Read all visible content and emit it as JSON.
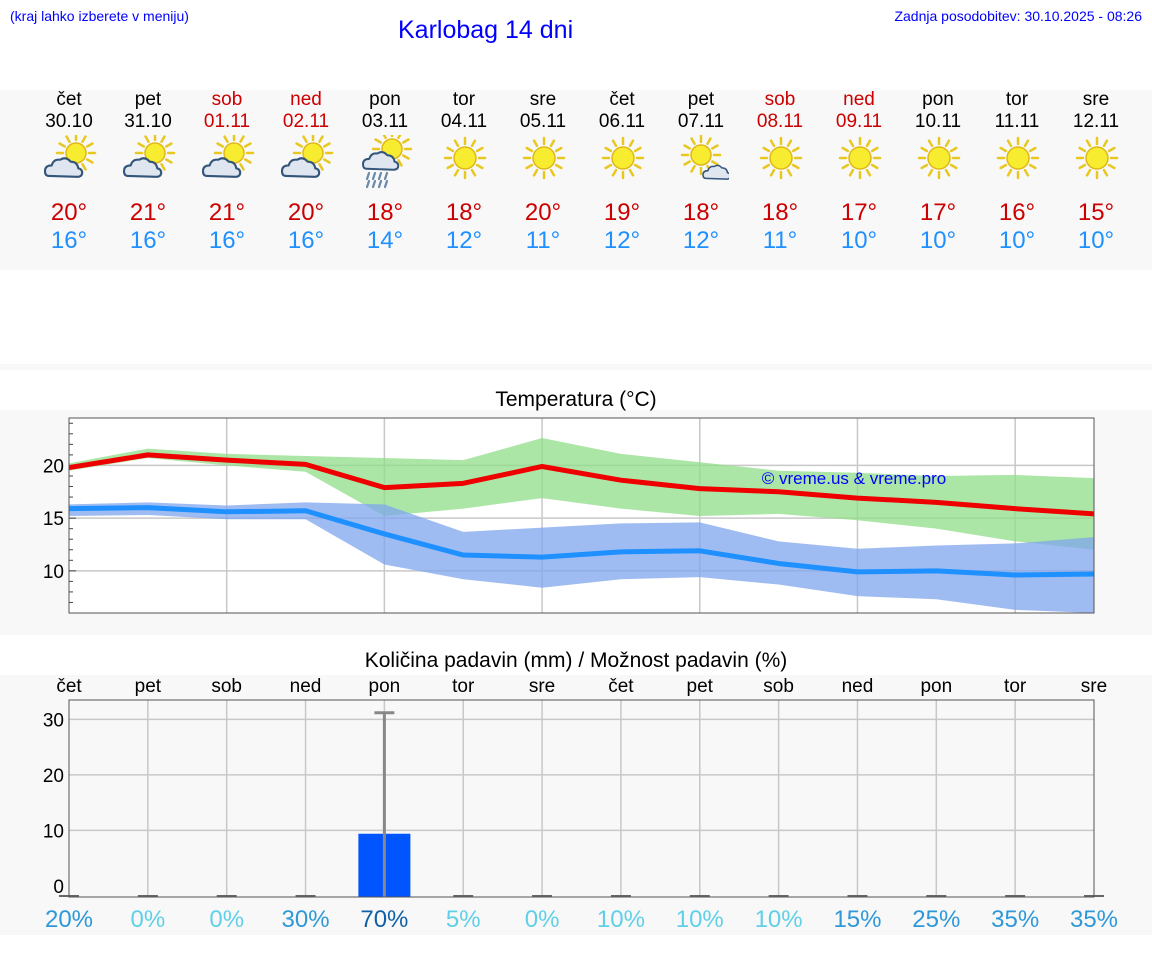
{
  "header": {
    "location_hint": "(kraj lahko izberete v meniju)",
    "title": "Karlobag 14 dni",
    "updated": "Zadnja posodobitev: 30.10.2025 - 08:26"
  },
  "days": [
    {
      "name": "čet",
      "date": "30.10",
      "weekend": false,
      "icon": "sun-cloud-icon",
      "max": "20°",
      "min": "16°"
    },
    {
      "name": "pet",
      "date": "31.10",
      "weekend": false,
      "icon": "sun-cloud-icon",
      "max": "21°",
      "min": "16°"
    },
    {
      "name": "sob",
      "date": "01.11",
      "weekend": true,
      "icon": "sun-cloud-icon",
      "max": "21°",
      "min": "16°"
    },
    {
      "name": "ned",
      "date": "02.11",
      "weekend": true,
      "icon": "sun-cloud-icon",
      "max": "20°",
      "min": "16°"
    },
    {
      "name": "pon",
      "date": "03.11",
      "weekend": false,
      "icon": "sun-rain-icon",
      "max": "18°",
      "min": "14°"
    },
    {
      "name": "tor",
      "date": "04.11",
      "weekend": false,
      "icon": "sun-icon",
      "max": "18°",
      "min": "12°"
    },
    {
      "name": "sre",
      "date": "05.11",
      "weekend": false,
      "icon": "sun-icon",
      "max": "20°",
      "min": "11°"
    },
    {
      "name": "čet",
      "date": "06.11",
      "weekend": false,
      "icon": "sun-icon",
      "max": "19°",
      "min": "12°"
    },
    {
      "name": "pet",
      "date": "07.11",
      "weekend": false,
      "icon": "sun-small-cloud-icon",
      "max": "18°",
      "min": "12°"
    },
    {
      "name": "sob",
      "date": "08.11",
      "weekend": true,
      "icon": "sun-icon",
      "max": "18°",
      "min": "11°"
    },
    {
      "name": "ned",
      "date": "09.11",
      "weekend": true,
      "icon": "sun-icon",
      "max": "17°",
      "min": "10°"
    },
    {
      "name": "pon",
      "date": "10.11",
      "weekend": false,
      "icon": "sun-icon",
      "max": "17°",
      "min": "10°"
    },
    {
      "name": "tor",
      "date": "11.11",
      "weekend": false,
      "icon": "sun-icon",
      "max": "16°",
      "min": "10°"
    },
    {
      "name": "sre",
      "date": "12.11",
      "weekend": false,
      "icon": "sun-icon",
      "max": "15°",
      "min": "10°"
    }
  ],
  "colors": {
    "max_line": "#ee0000",
    "min_line": "#1e90ff",
    "max_band": "#90dd88",
    "min_band": "#7fa6ee",
    "bar": "#0055ff",
    "whisker": "#888888",
    "title_blue": "#0000ff",
    "prob_light": "#5fd0e8",
    "prob_mid": "#2e98d8",
    "prob_dark": "#1060a8"
  },
  "chart_data": [
    {
      "type": "line",
      "title": "Temperatura (°C)",
      "watermark": "© vreme.us & vreme.pro",
      "categories": [
        "30.10",
        "31.10",
        "01.11",
        "02.11",
        "03.11",
        "04.11",
        "05.11",
        "06.11",
        "07.11",
        "08.11",
        "09.11",
        "10.11",
        "11.11",
        "12.11"
      ],
      "ylim": [
        6,
        24.5
      ],
      "yticks": [
        10,
        15,
        20
      ],
      "series": [
        {
          "name": "max",
          "values": [
            19.8,
            21,
            20.5,
            20.1,
            17.9,
            18.3,
            19.9,
            18.6,
            17.8,
            17.5,
            16.9,
            16.5,
            15.9,
            15.4
          ],
          "band_low": [
            19.5,
            20.7,
            20.0,
            19.4,
            15.2,
            15.9,
            16.9,
            15.9,
            15.2,
            15.4,
            14.8,
            14.0,
            12.8,
            12.0
          ],
          "band_high": [
            20.2,
            21.6,
            21.1,
            20.9,
            20.7,
            20.5,
            22.6,
            21.1,
            20.3,
            19.5,
            19.3,
            19.0,
            19.1,
            18.8
          ]
        },
        {
          "name": "min",
          "values": [
            15.9,
            16.0,
            15.6,
            15.7,
            13.5,
            11.5,
            11.3,
            11.8,
            11.9,
            10.7,
            9.9,
            10.0,
            9.6,
            9.7
          ],
          "band_low": [
            15.2,
            15.3,
            14.9,
            14.9,
            10.6,
            9.2,
            8.4,
            9.2,
            9.4,
            8.7,
            7.6,
            7.3,
            6.3,
            6.0
          ],
          "band_high": [
            16.3,
            16.5,
            16.2,
            16.5,
            16.3,
            13.7,
            14.1,
            14.5,
            14.6,
            12.8,
            12.1,
            12.4,
            12.6,
            13.2
          ]
        }
      ]
    },
    {
      "type": "bar",
      "title": "Količina padavin (mm) / Možnost padavin (%)",
      "categories": [
        "čet",
        "pet",
        "sob",
        "ned",
        "pon",
        "tor",
        "sre",
        "čet",
        "pet",
        "sob",
        "ned",
        "pon",
        "tor",
        "sre"
      ],
      "values": [
        0,
        0,
        0,
        0,
        9.4,
        0,
        0,
        0,
        0,
        0,
        0,
        0,
        0,
        0
      ],
      "whisker_max": [
        0,
        0,
        0,
        0,
        31.2,
        0,
        0,
        0,
        0,
        0,
        0,
        0,
        0,
        0
      ],
      "ylim": [
        -2,
        33.5
      ],
      "yticks": [
        0,
        10,
        20,
        30
      ],
      "probability": [
        "20%",
        "0%",
        "0%",
        "30%",
        "70%",
        "5%",
        "0%",
        "10%",
        "10%",
        "10%",
        "15%",
        "25%",
        "35%",
        "35%"
      ],
      "probability_values": [
        20,
        0,
        0,
        30,
        70,
        5,
        0,
        10,
        10,
        10,
        15,
        25,
        35,
        35
      ]
    }
  ]
}
